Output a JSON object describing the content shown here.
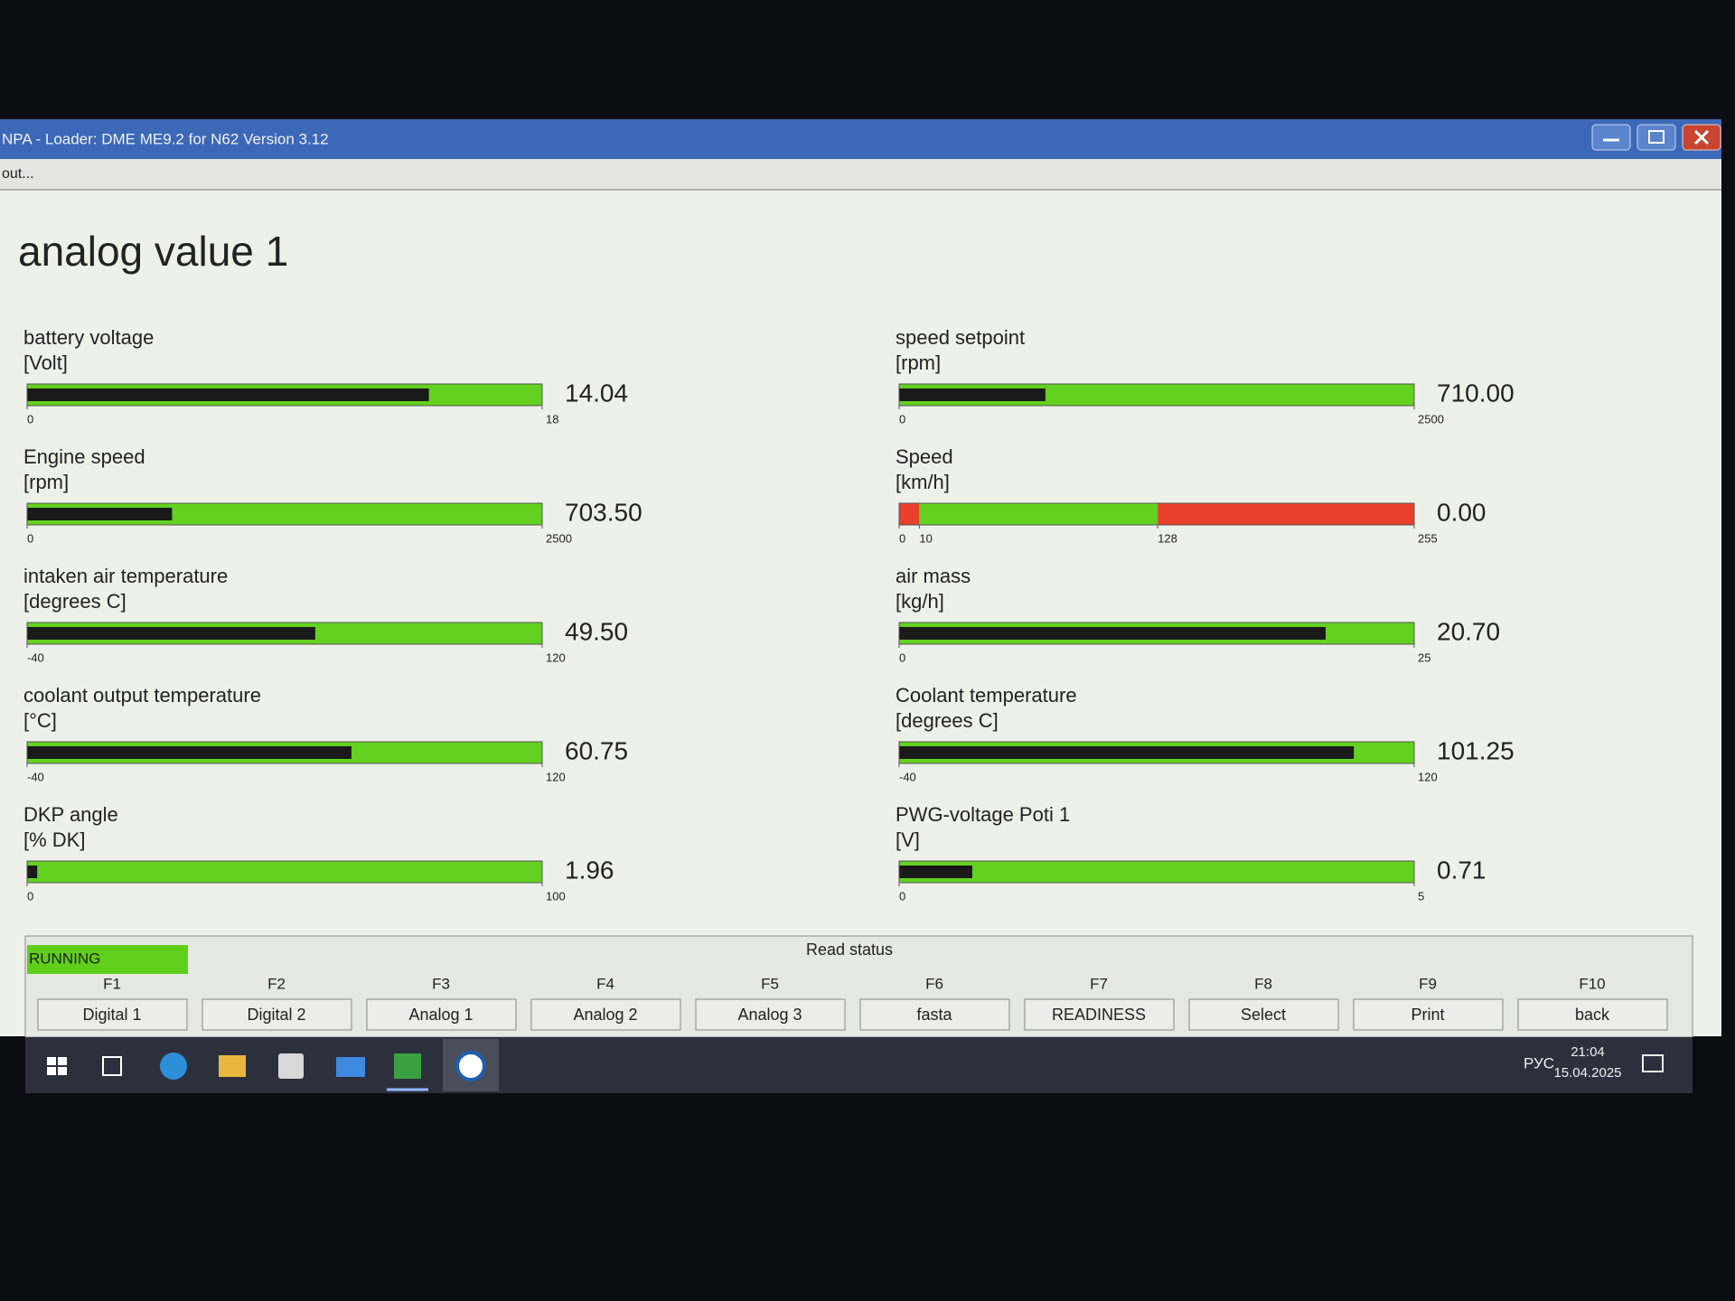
{
  "window": {
    "title": "NPA - Loader: DME ME9.2 for N62 Version 3.12",
    "menu": "out..."
  },
  "page": {
    "title": "analog value 1"
  },
  "bar_color": "#1a1a1a",
  "gauges": [
    {
      "label": "battery voltage",
      "unit": "[Volt]",
      "value": 14.04,
      "ticks": [
        0,
        18
      ],
      "zone_colors": [
        "#62d11f"
      ]
    },
    {
      "label": "Engine speed",
      "unit": "[rpm]",
      "value": 703.5,
      "value_label": "703.50",
      "ticks": [
        0,
        2500
      ],
      "zone_colors": [
        "#62d11f"
      ]
    },
    {
      "label": "intaken air temperature",
      "unit": "[degrees C]",
      "value": 49.5,
      "value_label": "49.50",
      "ticks": [
        -40,
        120
      ],
      "zone_colors": [
        "#62d11f"
      ]
    },
    {
      "label": "coolant output temperature",
      "unit": "[°C]",
      "value": 60.75,
      "ticks": [
        -40,
        120
      ],
      "zone_colors": [
        "#62d11f"
      ]
    },
    {
      "label": "DKP angle",
      "unit": "[% DK]",
      "value": 1.96,
      "ticks": [
        0,
        100
      ],
      "zone_colors": [
        "#62d11f"
      ]
    },
    {
      "label": "speed setpoint",
      "unit": "[rpm]",
      "value": 710,
      "value_label": "710.00",
      "ticks": [
        0,
        2500
      ],
      "zone_colors": [
        "#62d11f"
      ]
    },
    {
      "label": "Speed",
      "unit": "[km/h]",
      "value": 0,
      "value_label": "0.00",
      "ticks": [
        0,
        10,
        128,
        255
      ],
      "zone_colors": [
        "#e8402a",
        "#62d11f",
        "#e8402a"
      ]
    },
    {
      "label": "air mass",
      "unit": "[kg/h]",
      "value": 20.7,
      "value_label": "20.70",
      "ticks": [
        0,
        25
      ],
      "zone_colors": [
        "#62d11f"
      ]
    },
    {
      "label": "Coolant temperature",
      "unit": "[degrees C]",
      "value": 101.25,
      "ticks": [
        -40,
        120
      ],
      "zone_colors": [
        "#62d11f"
      ]
    },
    {
      "label": "PWG-voltage Poti 1",
      "unit": "[V]",
      "value": 0.71,
      "ticks": [
        0,
        5
      ],
      "zone_colors": [
        "#62d11f"
      ]
    }
  ],
  "status": {
    "state": "RUNNING",
    "label": "Read status"
  },
  "keys": [
    {
      "key": "F1",
      "label": "Digital 1"
    },
    {
      "key": "F2",
      "label": "Digital 2"
    },
    {
      "key": "F3",
      "label": "Analog 1"
    },
    {
      "key": "F4",
      "label": "Analog 2"
    },
    {
      "key": "F5",
      "label": "Analog 3"
    },
    {
      "key": "F6",
      "label": "fasta"
    },
    {
      "key": "F7",
      "label": "READINESS"
    },
    {
      "key": "F8",
      "label": "Select"
    },
    {
      "key": "F9",
      "label": "Print"
    },
    {
      "key": "F10",
      "label": "back"
    }
  ],
  "taskbar": {
    "language": "РУС",
    "time": "21:04",
    "date": "15.04.2025"
  }
}
